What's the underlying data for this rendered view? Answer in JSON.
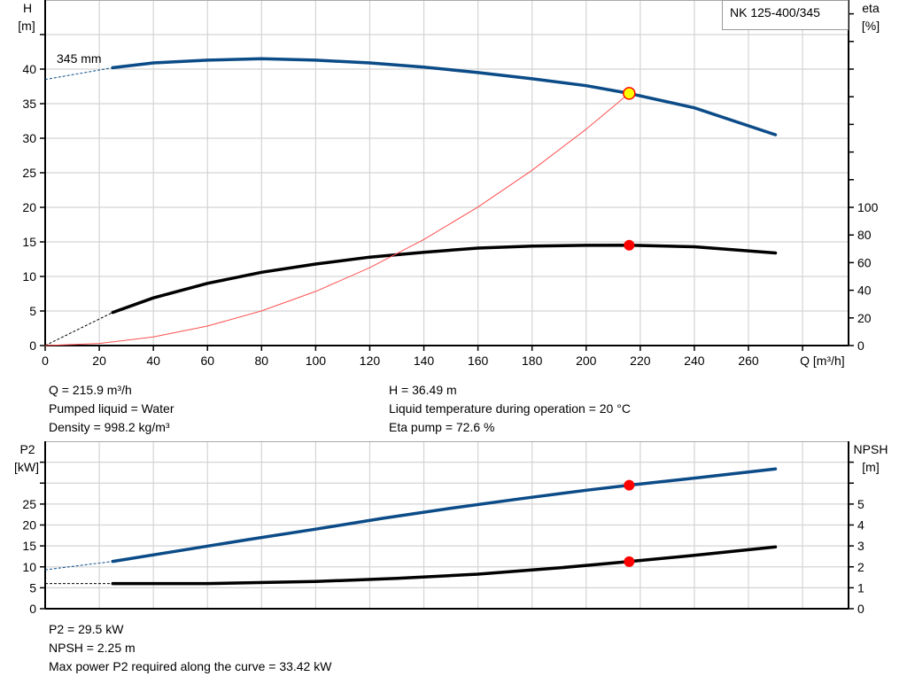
{
  "chart_data": [
    {
      "type": "line",
      "title": "NK 125-400/345",
      "xlabel": "Q [m³/h]",
      "ylabel": "H\n[m]",
      "ylabel_right": "eta\n[%]",
      "xlim": [
        0,
        297
      ],
      "ylim": [
        0,
        50
      ],
      "ylim_right": [
        0,
        250
      ],
      "xticks": [
        0,
        20,
        40,
        60,
        80,
        100,
        120,
        140,
        160,
        180,
        200,
        220,
        240,
        260
      ],
      "yticks": [
        0,
        5,
        10,
        15,
        20,
        25,
        30,
        35,
        40
      ],
      "yticks_right": [
        0,
        20,
        40,
        60,
        80,
        100
      ],
      "grid": true,
      "curve_label": "345 mm",
      "series": [
        {
          "id": "head",
          "axis": "left",
          "color": "#0b4b87",
          "x": [
            25,
            40,
            60,
            80,
            100,
            120,
            140,
            160,
            180,
            200,
            215.9,
            240,
            270
          ],
          "y": [
            40.2,
            40.9,
            41.3,
            41.5,
            41.3,
            40.9,
            40.3,
            39.5,
            38.6,
            37.6,
            36.49,
            34.4,
            30.5
          ],
          "extrapolated": {
            "x": [
              0,
              25
            ],
            "y": [
              38.5,
              40.2
            ]
          }
        },
        {
          "id": "eta",
          "axis": "right",
          "color": "#000000",
          "x": [
            25,
            40,
            60,
            80,
            100,
            120,
            140,
            160,
            180,
            200,
            215.9,
            240,
            270
          ],
          "y": [
            24,
            34.5,
            45,
            53,
            59,
            64,
            67.5,
            70.5,
            72,
            72.5,
            72.6,
            71.5,
            67
          ],
          "extrapolated": {
            "x": [
              0,
              25
            ],
            "y": [
              0,
              24
            ]
          }
        },
        {
          "id": "system",
          "axis": "left",
          "color": "#ff5050",
          "x": [
            0,
            20,
            40,
            60,
            80,
            100,
            120,
            140,
            160,
            180,
            200,
            215.9
          ],
          "y": [
            0,
            0.31,
            1.25,
            2.82,
            5.01,
            7.83,
            11.27,
            15.34,
            20.04,
            25.36,
            31.31,
            36.49
          ]
        }
      ],
      "duty_point": {
        "Q": 215.9,
        "H": 36.49,
        "eta": 72.6
      }
    },
    {
      "type": "line",
      "ylabel": "P2\n[kW]",
      "ylabel_right": "NPSH\n[m]",
      "xlim": [
        0,
        297
      ],
      "ylim": [
        0,
        40
      ],
      "ylim_right": [
        0,
        8
      ],
      "yticks": [
        0,
        5,
        10,
        15,
        20,
        25
      ],
      "yticks_right": [
        0,
        1,
        2,
        3,
        4,
        5
      ],
      "grid": true,
      "series": [
        {
          "id": "p2",
          "axis": "left",
          "color": "#0b4b87",
          "x": [
            25,
            50,
            75,
            100,
            125,
            150,
            175,
            200,
            215.9,
            240,
            270
          ],
          "y": [
            11.3,
            13.9,
            16.5,
            19.0,
            21.6,
            24.0,
            26.2,
            28.3,
            29.5,
            31.2,
            33.4
          ],
          "extrapolated": {
            "x": [
              0,
              25
            ],
            "y": [
              9.3,
              11.3
            ]
          }
        },
        {
          "id": "npsh",
          "axis": "right",
          "color": "#000000",
          "x": [
            25,
            60,
            100,
            130,
            160,
            190,
            215.9,
            240,
            270
          ],
          "y": [
            1.2,
            1.2,
            1.3,
            1.45,
            1.65,
            1.95,
            2.25,
            2.55,
            2.95
          ],
          "extrapolated": {
            "x": [
              0,
              25
            ],
            "y": [
              1.2,
              1.2
            ]
          }
        }
      ],
      "duty_point": {
        "Q": 215.9,
        "P2": 29.5,
        "NPSH": 2.25
      }
    }
  ],
  "info_top": {
    "left": [
      "Q = 215.9 m³/h",
      "Pumped liquid = Water",
      "Density = 998.2 kg/m³"
    ],
    "right": [
      "H = 36.49 m",
      "Liquid temperature during operation = 20 °C",
      "Eta pump = 72.6 %"
    ]
  },
  "info_bottom": [
    "P2 = 29.5 kW",
    "NPSH = 2.25 m",
    "Max power P2 required along the curve = 33.42 kW"
  ]
}
